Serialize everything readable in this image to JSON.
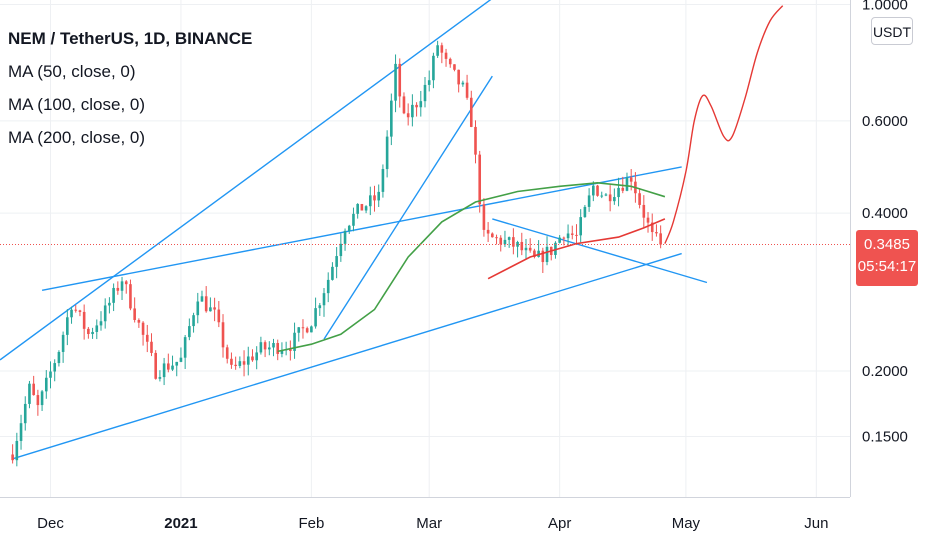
{
  "header": {
    "title": "NEM / TetherUS, 1D, BINANCE",
    "indicators": [
      "MA (50, close, 0)",
      "MA (100, close, 0)",
      "MA (200, close, 0)"
    ],
    "currency_button": "USDT"
  },
  "colors": {
    "up": "#26a69a",
    "down": "#ef5350",
    "trendline": "#2196f3",
    "ma50": "#e53935",
    "ma100": "#43a047",
    "projection": "#e53935",
    "badge": "#ef5350",
    "axis_text": "#131722",
    "grid": "#eef0f3"
  },
  "price_badge": {
    "price": "0.3485",
    "countdown": "05:54:17"
  },
  "chart_data": {
    "type": "candlestick",
    "title": "NEM / TetherUS, 1D, BINANCE",
    "xlabel": "",
    "ylabel": "",
    "y_scale": "log",
    "ylim": [
      0.115,
      1.02
    ],
    "x_range": [
      "2020-11-19",
      "2021-06-09"
    ],
    "grid": true,
    "legend_position": "top-left",
    "y_ticks": [
      {
        "value": 1.0,
        "label": "1.0000"
      },
      {
        "value": 0.6,
        "label": "0.6000"
      },
      {
        "value": 0.4,
        "label": "0.4000"
      },
      {
        "value": 0.2,
        "label": "0.2000"
      },
      {
        "value": 0.15,
        "label": "0.1500"
      }
    ],
    "x_ticks": [
      {
        "date": "2020-12-01",
        "label": "Dec",
        "bold": false
      },
      {
        "date": "2021-01-01",
        "label": "2021",
        "bold": true
      },
      {
        "date": "2021-02-01",
        "label": "Feb",
        "bold": false
      },
      {
        "date": "2021-03-01",
        "label": "Mar",
        "bold": false
      },
      {
        "date": "2021-04-01",
        "label": "Apr",
        "bold": false
      },
      {
        "date": "2021-05-01",
        "label": "May",
        "bold": false
      },
      {
        "date": "2021-06-01",
        "label": "Jun",
        "bold": false
      }
    ],
    "last_price": 0.3485,
    "anchors": [
      [
        "2020-11-22",
        0.14
      ],
      [
        "2020-11-26",
        0.185
      ],
      [
        "2020-11-28",
        0.17
      ],
      [
        "2020-12-03",
        0.22
      ],
      [
        "2020-12-06",
        0.27
      ],
      [
        "2020-12-10",
        0.235
      ],
      [
        "2020-12-14",
        0.26
      ],
      [
        "2020-12-18",
        0.3
      ],
      [
        "2020-12-22",
        0.245
      ],
      [
        "2020-12-26",
        0.2
      ],
      [
        "2021-01-01",
        0.21
      ],
      [
        "2021-01-05",
        0.28
      ],
      [
        "2021-01-09",
        0.255
      ],
      [
        "2021-01-13",
        0.2
      ],
      [
        "2021-01-20",
        0.22
      ],
      [
        "2021-01-27",
        0.225
      ],
      [
        "2021-02-01",
        0.25
      ],
      [
        "2021-02-05",
        0.3
      ],
      [
        "2021-02-09",
        0.38
      ],
      [
        "2021-02-13",
        0.41
      ],
      [
        "2021-02-17",
        0.43
      ],
      [
        "2021-02-19",
        0.56
      ],
      [
        "2021-02-21",
        0.75
      ],
      [
        "2021-02-23",
        0.6
      ],
      [
        "2021-02-26",
        0.65
      ],
      [
        "2021-03-01",
        0.72
      ],
      [
        "2021-03-03",
        0.84
      ],
      [
        "2021-03-05",
        0.77
      ],
      [
        "2021-03-09",
        0.69
      ],
      [
        "2021-03-11",
        0.6
      ],
      [
        "2021-03-14",
        0.36
      ],
      [
        "2021-03-18",
        0.355
      ],
      [
        "2021-03-22",
        0.345
      ],
      [
        "2021-03-26",
        0.325
      ],
      [
        "2021-03-30",
        0.34
      ],
      [
        "2021-04-02",
        0.37
      ],
      [
        "2021-04-05",
        0.36
      ],
      [
        "2021-04-09",
        0.45
      ],
      [
        "2021-04-12",
        0.43
      ],
      [
        "2021-04-15",
        0.45
      ],
      [
        "2021-04-18",
        0.47
      ],
      [
        "2021-04-20",
        0.42
      ],
      [
        "2021-04-23",
        0.36
      ],
      [
        "2021-04-25",
        0.3485
      ]
    ],
    "moving_averages": [
      {
        "name": "MA (50, close, 0)",
        "color_key": "ma50",
        "points": [
          [
            "2021-03-15",
            0.3
          ],
          [
            "2021-03-25",
            0.33
          ],
          [
            "2021-04-05",
            0.35
          ],
          [
            "2021-04-15",
            0.36
          ],
          [
            "2021-04-21",
            0.375
          ],
          [
            "2021-04-26",
            0.39
          ]
        ]
      },
      {
        "name": "MA (100, close, 0)",
        "color_key": "ma100",
        "points": [
          [
            "2021-01-24",
            0.218
          ],
          [
            "2021-02-01",
            0.225
          ],
          [
            "2021-02-08",
            0.235
          ],
          [
            "2021-02-16",
            0.262
          ],
          [
            "2021-02-24",
            0.33
          ],
          [
            "2021-03-04",
            0.385
          ],
          [
            "2021-03-12",
            0.42
          ],
          [
            "2021-03-22",
            0.44
          ],
          [
            "2021-04-01",
            0.45
          ],
          [
            "2021-04-10",
            0.457
          ],
          [
            "2021-04-18",
            0.45
          ],
          [
            "2021-04-26",
            0.43
          ]
        ]
      }
    ],
    "trendlines": [
      {
        "from": [
          "2020-11-19",
          0.21
        ],
        "to": [
          "2021-03-19",
          1.07
        ]
      },
      {
        "from": [
          "2020-11-29",
          0.285
        ],
        "to": [
          "2021-04-30",
          0.49
        ]
      },
      {
        "from": [
          "2020-11-22",
          0.136
        ],
        "to": [
          "2021-04-30",
          0.335
        ]
      },
      {
        "from": [
          "2021-02-04",
          0.23
        ],
        "to": [
          "2021-03-16",
          0.73
        ]
      },
      {
        "from": [
          "2021-03-16",
          0.39
        ],
        "to": [
          "2021-05-06",
          0.295
        ]
      }
    ],
    "projection": [
      [
        "2021-04-26",
        0.35
      ],
      [
        "2021-04-28",
        0.385
      ],
      [
        "2021-05-01",
        0.48
      ],
      [
        "2021-05-03",
        0.6
      ],
      [
        "2021-05-05",
        0.67
      ],
      [
        "2021-05-07",
        0.64
      ],
      [
        "2021-05-10",
        0.56
      ],
      [
        "2021-05-12",
        0.56
      ],
      [
        "2021-05-15",
        0.66
      ],
      [
        "2021-05-18",
        0.81
      ],
      [
        "2021-05-21",
        0.93
      ],
      [
        "2021-05-24",
        0.995
      ]
    ]
  }
}
